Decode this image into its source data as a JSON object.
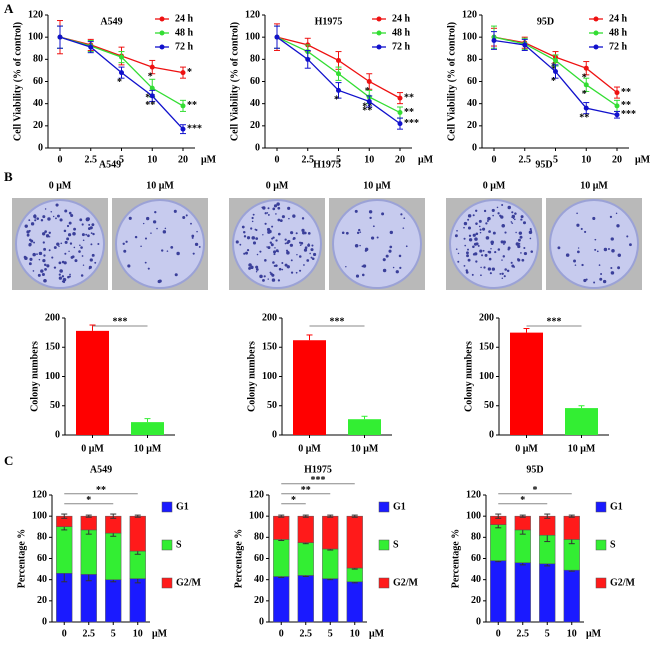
{
  "panels": [
    "A",
    "B",
    "C"
  ],
  "chart_data": [
    {
      "type": "line",
      "title": "A549",
      "ylabel": "Cell Viability (% of control)",
      "categories": [
        "0",
        "2.5",
        "5",
        "10",
        "20"
      ],
      "x_unit": "μM",
      "ylim": [
        0,
        120
      ],
      "yticks": [
        0,
        20,
        40,
        60,
        80,
        100,
        120
      ],
      "series": [
        {
          "name": "24 h",
          "color": "#ee1111",
          "values": [
            100,
            93,
            83,
            73,
            68
          ],
          "errors": [
            15,
            5,
            8,
            6,
            5
          ],
          "significance": [
            null,
            null,
            null,
            "*",
            "*"
          ]
        },
        {
          "name": "48 h",
          "color": "#33dd33",
          "values": [
            100,
            92,
            82,
            54,
            38
          ],
          "errors": [
            10,
            5,
            5,
            8,
            5
          ],
          "significance": [
            null,
            null,
            null,
            "**",
            "**"
          ]
        },
        {
          "name": "72 h",
          "color": "#1111cc",
          "values": [
            100,
            91,
            68,
            47,
            17
          ],
          "errors": [
            10,
            5,
            5,
            5,
            4
          ],
          "significance": [
            null,
            null,
            "*",
            "**",
            "***"
          ]
        }
      ]
    },
    {
      "type": "line",
      "title": "H1975",
      "ylabel": "Cell Viability (% of control)",
      "categories": [
        "0",
        "2.5",
        "5",
        "10",
        "20"
      ],
      "x_unit": "μM",
      "ylim": [
        0,
        120
      ],
      "yticks": [
        0,
        20,
        40,
        60,
        80,
        100,
        120
      ],
      "series": [
        {
          "name": "24 h",
          "color": "#ee1111",
          "values": [
            100,
            93,
            79,
            60,
            45
          ],
          "errors": [
            12,
            6,
            8,
            7,
            5
          ],
          "significance": [
            null,
            null,
            null,
            "*",
            "**"
          ]
        },
        {
          "name": "48 h",
          "color": "#33dd33",
          "values": [
            100,
            87,
            67,
            46,
            32
          ],
          "errors": [
            10,
            6,
            6,
            6,
            5
          ],
          "significance": [
            null,
            null,
            null,
            "**",
            "**"
          ]
        },
        {
          "name": "72 h",
          "color": "#1111cc",
          "values": [
            100,
            80,
            52,
            42,
            22
          ],
          "errors": [
            10,
            8,
            7,
            5,
            5
          ],
          "significance": [
            null,
            null,
            "*",
            "**",
            "***"
          ]
        }
      ]
    },
    {
      "type": "line",
      "title": "95D",
      "ylabel": "Cell Viability (% of control)",
      "categories": [
        "0",
        "2.5",
        "5",
        "10",
        "20"
      ],
      "x_unit": "μM",
      "ylim": [
        0,
        120
      ],
      "yticks": [
        0,
        20,
        40,
        60,
        80,
        100,
        120
      ],
      "series": [
        {
          "name": "24 h",
          "color": "#ee1111",
          "values": [
            100,
            95,
            82,
            72,
            50
          ],
          "errors": [
            8,
            5,
            5,
            6,
            5
          ],
          "significance": [
            null,
            null,
            "*",
            "*",
            "**"
          ]
        },
        {
          "name": "48 h",
          "color": "#33dd33",
          "values": [
            100,
            94,
            79,
            57,
            38
          ],
          "errors": [
            10,
            5,
            5,
            6,
            5
          ],
          "significance": [
            null,
            null,
            "*",
            "*",
            "**"
          ]
        },
        {
          "name": "72 h",
          "color": "#1111cc",
          "values": [
            97,
            93,
            69,
            36,
            30
          ],
          "errors": [
            8,
            5,
            6,
            5,
            3
          ],
          "significance": [
            null,
            null,
            "*",
            "**",
            "***"
          ]
        }
      ]
    },
    {
      "type": "bar",
      "title": "A549",
      "ylabel": "Colony numbers",
      "categories": [
        "0 μM",
        "10 μM"
      ],
      "colors": [
        "#ff0000",
        "#33ee33"
      ],
      "values": [
        178,
        22
      ],
      "errors": [
        10,
        6
      ],
      "significance": "***",
      "ylim": [
        0,
        200
      ],
      "yticks": [
        0,
        50,
        100,
        150,
        200
      ]
    },
    {
      "type": "bar",
      "title": "H1975",
      "ylabel": "Colony numbers",
      "categories": [
        "0 μM",
        "10 μM"
      ],
      "colors": [
        "#ff0000",
        "#33ee33"
      ],
      "values": [
        162,
        27
      ],
      "errors": [
        9,
        5
      ],
      "significance": "***",
      "ylim": [
        0,
        200
      ],
      "yticks": [
        0,
        50,
        100,
        150,
        200
      ]
    },
    {
      "type": "bar",
      "title": "95D",
      "ylabel": "Colony numbers",
      "categories": [
        "0 μM",
        "10 μM"
      ],
      "colors": [
        "#ff0000",
        "#33ee33"
      ],
      "values": [
        175,
        46
      ],
      "errors": [
        7,
        4
      ],
      "significance": "***",
      "ylim": [
        0,
        200
      ],
      "yticks": [
        0,
        50,
        100,
        150,
        200
      ]
    },
    {
      "type": "stacked_bar",
      "title": "A549",
      "ylabel": "Percentage %",
      "categories": [
        "0",
        "2.5",
        "5",
        "10"
      ],
      "x_unit": "μM",
      "ylim": [
        0,
        120
      ],
      "yticks": [
        0,
        20,
        40,
        60,
        80,
        100,
        120
      ],
      "series": [
        {
          "name": "G1",
          "color": "#1a1aff",
          "values": [
            46,
            45,
            40,
            41
          ],
          "errors": [
            8,
            6,
            2,
            4
          ]
        },
        {
          "name": "S",
          "color": "#33ee33",
          "values": [
            44,
            42,
            44,
            26
          ],
          "errors": [
            3,
            4,
            3,
            3
          ]
        },
        {
          "name": "G2/M",
          "color": "#ff1a1a",
          "values": [
            10,
            13,
            16,
            33
          ],
          "errors": [
            2,
            1,
            2,
            1
          ]
        }
      ],
      "brackets": [
        {
          "from": "0",
          "to": "5",
          "label": "*"
        },
        {
          "from": "0",
          "to": "10",
          "label": "**"
        }
      ]
    },
    {
      "type": "stacked_bar",
      "title": "H1975",
      "ylabel": "Percentage %",
      "categories": [
        "0",
        "2.5",
        "5",
        "10"
      ],
      "x_unit": "μM",
      "ylim": [
        0,
        120
      ],
      "yticks": [
        0,
        20,
        40,
        60,
        80,
        100,
        120
      ],
      "series": [
        {
          "name": "G1",
          "color": "#1a1aff",
          "values": [
            43,
            44,
            41,
            38
          ],
          "errors": [
            1,
            1,
            1,
            1
          ]
        },
        {
          "name": "S",
          "color": "#33ee33",
          "values": [
            35,
            31,
            28,
            13
          ],
          "errors": [
            1,
            1,
            1,
            1
          ]
        },
        {
          "name": "G2/M",
          "color": "#ff1a1a",
          "values": [
            22,
            25,
            31,
            49
          ],
          "errors": [
            1,
            1,
            1,
            1
          ]
        }
      ],
      "brackets": [
        {
          "from": "0",
          "to": "2.5",
          "label": "*"
        },
        {
          "from": "0",
          "to": "5",
          "label": "**"
        },
        {
          "from": "0",
          "to": "10",
          "label": "***"
        }
      ]
    },
    {
      "type": "stacked_bar",
      "title": "95D",
      "ylabel": "Percentage %",
      "categories": [
        "0",
        "2.5",
        "5",
        "10"
      ],
      "x_unit": "μM",
      "ylim": [
        0,
        120
      ],
      "yticks": [
        0,
        20,
        40,
        60,
        80,
        100,
        120
      ],
      "series": [
        {
          "name": "G1",
          "color": "#1a1aff",
          "values": [
            58,
            56,
            55,
            49
          ],
          "errors": [
            1,
            2,
            2,
            1
          ]
        },
        {
          "name": "S",
          "color": "#33ee33",
          "values": [
            34,
            31,
            27,
            29
          ],
          "errors": [
            3,
            4,
            6,
            4
          ]
        },
        {
          "name": "G2/M",
          "color": "#ff1a1a",
          "values": [
            8,
            13,
            18,
            22
          ],
          "errors": [
            2,
            1,
            2,
            1
          ]
        }
      ],
      "brackets": [
        {
          "from": "0",
          "to": "5",
          "label": "*"
        },
        {
          "from": "0",
          "to": "10",
          "label": "*"
        }
      ]
    }
  ]
}
